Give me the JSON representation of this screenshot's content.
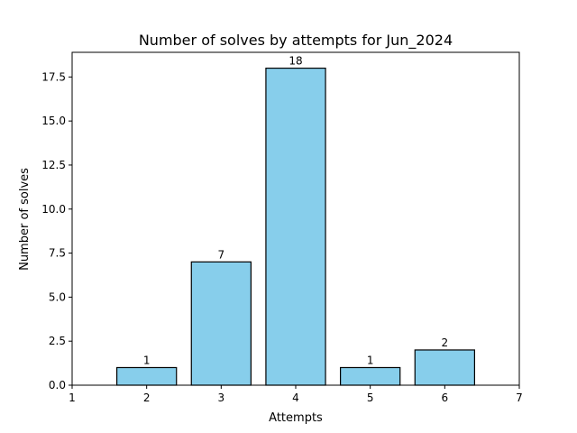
{
  "chart_data": {
    "type": "bar",
    "title": "Number of solves by attempts for Jun_2024",
    "xlabel": "Attempts",
    "ylabel": "Number of solves",
    "x": [
      2,
      3,
      4,
      5,
      6
    ],
    "values": [
      1,
      7,
      18,
      1,
      2
    ],
    "data_labels": [
      "1",
      "7",
      "18",
      "1",
      "2"
    ],
    "xlim": [
      1,
      7
    ],
    "ylim": [
      0,
      18.9
    ],
    "xticks": [
      1,
      2,
      3,
      4,
      5,
      6,
      7
    ],
    "yticks": [
      0.0,
      2.5,
      5.0,
      7.5,
      10.0,
      12.5,
      15.0,
      17.5
    ],
    "ytick_labels": [
      "0.0",
      "2.5",
      "5.0",
      "7.5",
      "10.0",
      "12.5",
      "15.0",
      "17.5"
    ],
    "bar_color": "#87CEEB",
    "bar_edge_color": "#000000",
    "grid": false,
    "legend": "none"
  }
}
